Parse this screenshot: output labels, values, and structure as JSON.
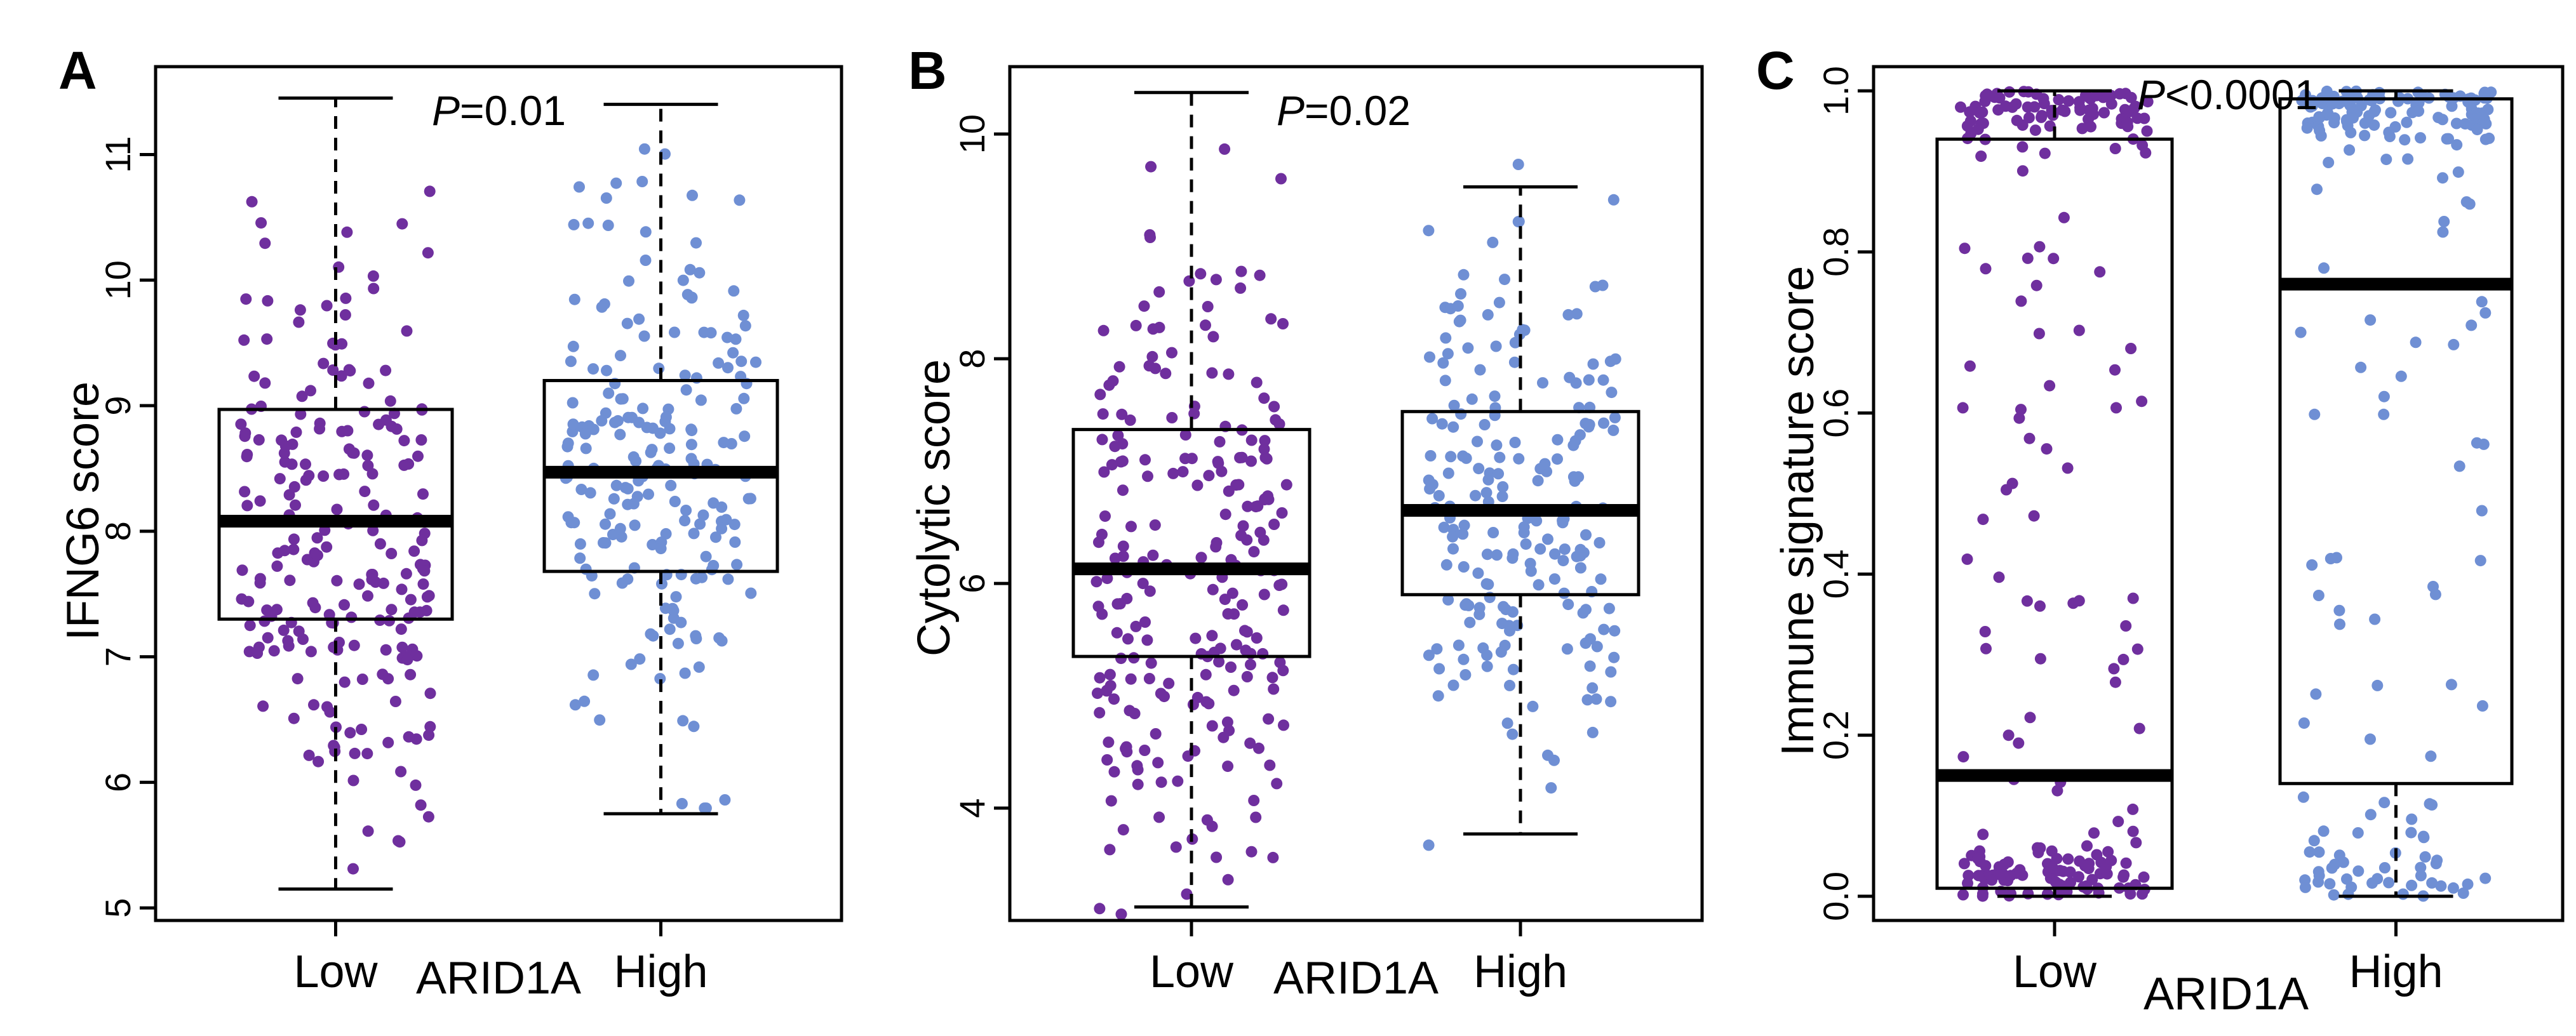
{
  "colors": {
    "low": "#6f2f9e",
    "high": "#6f8fd4"
  },
  "chart_data": [
    {
      "type": "box",
      "panel": "A",
      "title": "",
      "ylabel": "IFNG6 score",
      "xlabel": "ARID1A",
      "annotation": {
        "italic": "P",
        "rest": "=0.01"
      },
      "ylim": [
        4.9,
        11.7
      ],
      "yticks": [
        5,
        6,
        7,
        8,
        9,
        10,
        11
      ],
      "ytick_labels": [
        "5",
        "6",
        "7",
        "8",
        "9",
        "10",
        "11"
      ],
      "categories": [
        "Low",
        "High"
      ],
      "boxes": [
        {
          "name": "Low",
          "whisker_low": 5.15,
          "q1": 7.3,
          "median": 8.08,
          "q3": 8.97,
          "whisker_high": 11.45,
          "n": 220,
          "sd": 1.1,
          "seed": 11
        },
        {
          "name": "High",
          "whisker_low": 5.75,
          "q1": 7.68,
          "median": 8.47,
          "q3": 9.2,
          "whisker_high": 11.4,
          "n": 200,
          "sd": 1.05,
          "seed": 23
        }
      ]
    },
    {
      "type": "box",
      "panel": "B",
      "title": "",
      "ylabel": "Cytolytic score",
      "xlabel": "ARID1A",
      "annotation": {
        "italic": "P",
        "rest": "=0.02"
      },
      "ylim": [
        3.0,
        10.6
      ],
      "yticks": [
        4,
        6,
        8,
        10
      ],
      "ytick_labels": [
        "4",
        "6",
        "8",
        "10"
      ],
      "categories": [
        "Low",
        "High"
      ],
      "boxes": [
        {
          "name": "Low",
          "whisker_low": 3.12,
          "q1": 5.35,
          "median": 6.13,
          "q3": 7.37,
          "whisker_high": 10.37,
          "n": 230,
          "sd": 1.45,
          "seed": 37
        },
        {
          "name": "High",
          "whisker_low": 3.77,
          "q1": 5.9,
          "median": 6.65,
          "q3": 7.53,
          "whisker_high": 9.53,
          "n": 200,
          "sd": 1.2,
          "seed": 41
        }
      ]
    },
    {
      "type": "box",
      "panel": "C",
      "title": "",
      "ylabel": "Immune signature score",
      "xlabel": "ARID1A",
      "annotation": {
        "italic": "P",
        "rest": "<0.0001"
      },
      "ylim": [
        -0.03,
        1.03
      ],
      "yticks": [
        0.0,
        0.2,
        0.4,
        0.6,
        0.8,
        1.0
      ],
      "ytick_labels": [
        "0.0",
        "0.2",
        "0.4",
        "0.6",
        "0.8",
        "1.0"
      ],
      "categories": [
        "Low",
        "High"
      ],
      "boxes": [
        {
          "name": "Low",
          "whisker_low": 0.0,
          "q1": 0.01,
          "median": 0.15,
          "q3": 0.94,
          "whisker_high": 1.0,
          "n": 230,
          "seed": 53,
          "dist": "bimodal",
          "mix": [
            0.45,
            0.22,
            0.33
          ]
        },
        {
          "name": "High",
          "whisker_low": 0.0,
          "q1": 0.14,
          "median": 0.76,
          "q3": 0.99,
          "whisker_high": 1.0,
          "n": 200,
          "seed": 67,
          "dist": "bimodal",
          "mix": [
            0.22,
            0.25,
            0.53
          ]
        }
      ]
    }
  ]
}
